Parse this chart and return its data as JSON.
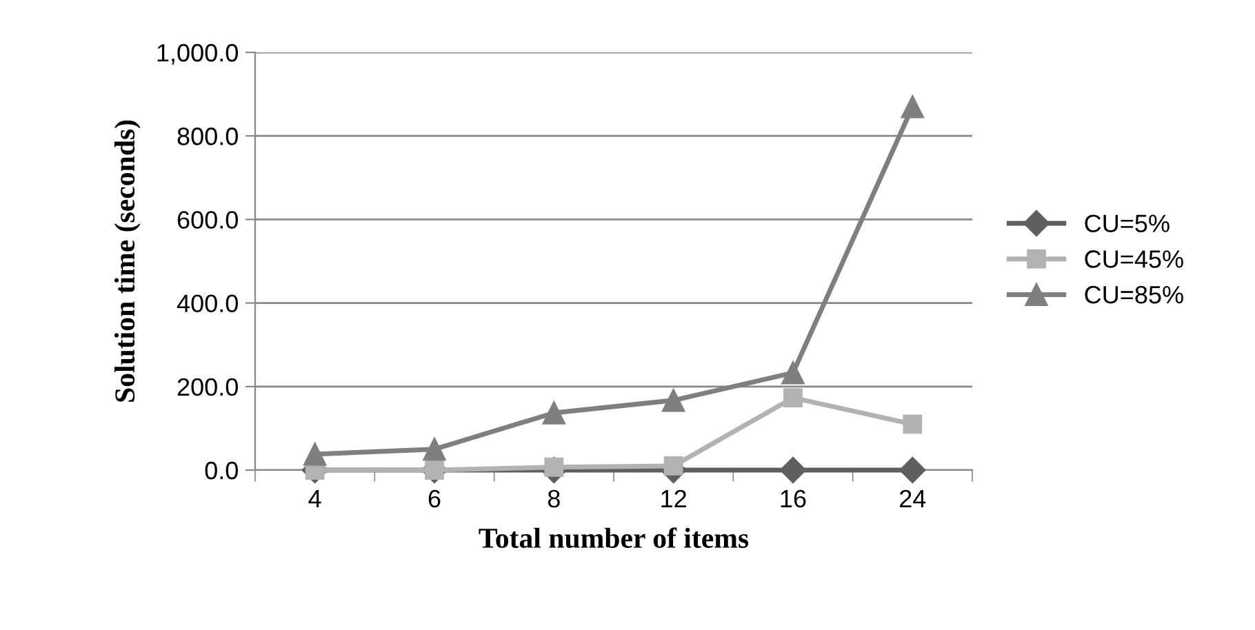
{
  "chart_data": {
    "type": "line",
    "xlabel": "Total number of items",
    "ylabel": "Solution time (seconds)",
    "categories": [
      "4",
      "6",
      "8",
      "12",
      "16",
      "24"
    ],
    "series": [
      {
        "name": "CU=5%",
        "color": "#5f5f5f",
        "marker": "diamond",
        "values": [
          0,
          0,
          0,
          0,
          0,
          0
        ]
      },
      {
        "name": "CU=45%",
        "color": "#b2b2b2",
        "marker": "square",
        "values": [
          0,
          0,
          7,
          10,
          173,
          110
        ]
      },
      {
        "name": "CU=85%",
        "color": "#7f7f7f",
        "marker": "triangle",
        "values": [
          38,
          50,
          137,
          167,
          233,
          870
        ]
      }
    ],
    "ylim": [
      0,
      1000
    ],
    "yticks": [
      {
        "value": 0,
        "label": "0.0"
      },
      {
        "value": 200,
        "label": "200.0"
      },
      {
        "value": 400,
        "label": "400.0"
      },
      {
        "value": 600,
        "label": "600.0"
      },
      {
        "value": 800,
        "label": "800.0"
      },
      {
        "value": 1000,
        "label": "1,000.0"
      }
    ],
    "grid": "y",
    "legend": "right"
  }
}
